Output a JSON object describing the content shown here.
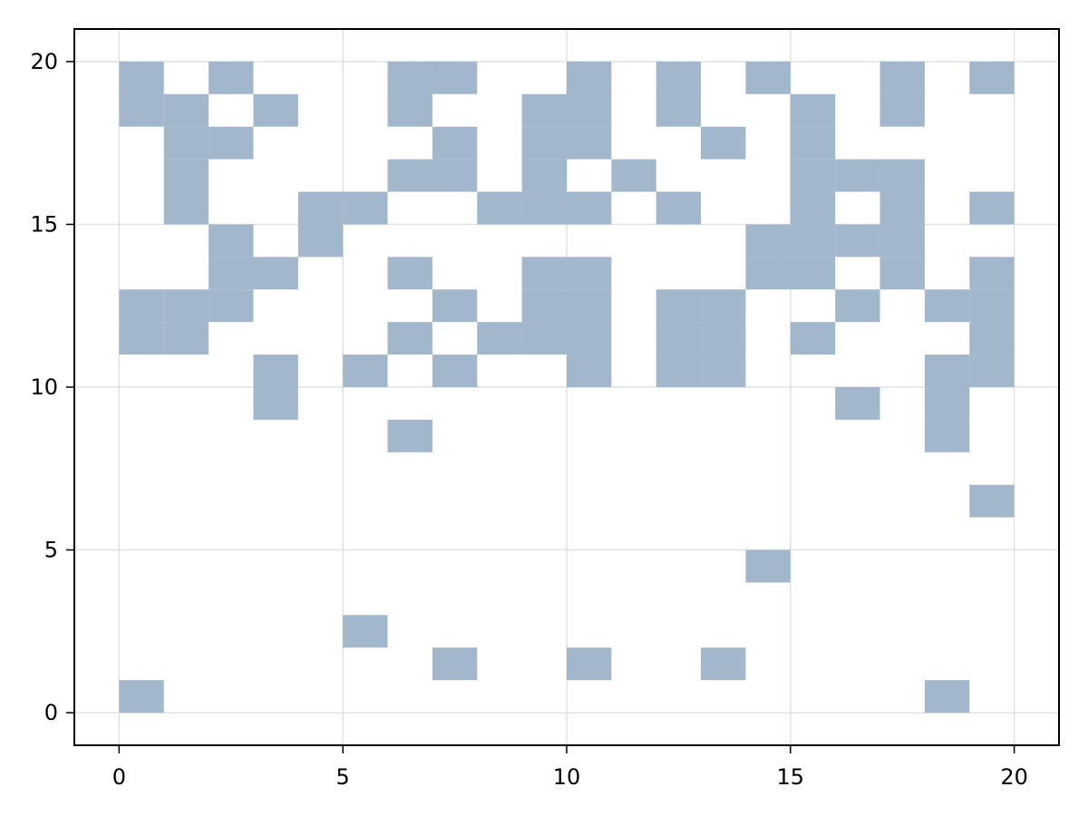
{
  "chart_data": {
    "type": "heatmap",
    "title": "",
    "xlabel": "",
    "ylabel": "",
    "xlim": [
      -1,
      21
    ],
    "ylim": [
      -1,
      21
    ],
    "x_ticks": [
      0,
      5,
      10,
      15,
      20
    ],
    "y_ticks": [
      0,
      5,
      10,
      15,
      20
    ],
    "x_tick_labels": [
      "0",
      "5",
      "10",
      "15",
      "20"
    ],
    "y_tick_labels": [
      "0",
      "5",
      "10",
      "15",
      "20"
    ],
    "grid": true,
    "cell_size": 1,
    "cell_color": "#a2b6cc",
    "cells": [
      [
        0,
        19
      ],
      [
        2,
        19
      ],
      [
        6,
        19
      ],
      [
        7,
        19
      ],
      [
        10,
        19
      ],
      [
        12,
        19
      ],
      [
        14,
        19
      ],
      [
        17,
        19
      ],
      [
        19,
        19
      ],
      [
        0,
        18
      ],
      [
        1,
        18
      ],
      [
        3,
        18
      ],
      [
        6,
        18
      ],
      [
        9,
        18
      ],
      [
        10,
        18
      ],
      [
        12,
        18
      ],
      [
        15,
        18
      ],
      [
        17,
        18
      ],
      [
        1,
        17
      ],
      [
        2,
        17
      ],
      [
        7,
        17
      ],
      [
        9,
        17
      ],
      [
        10,
        17
      ],
      [
        13,
        17
      ],
      [
        15,
        17
      ],
      [
        1,
        16
      ],
      [
        6,
        16
      ],
      [
        7,
        16
      ],
      [
        9,
        16
      ],
      [
        11,
        16
      ],
      [
        15,
        16
      ],
      [
        16,
        16
      ],
      [
        17,
        16
      ],
      [
        1,
        15
      ],
      [
        4,
        15
      ],
      [
        5,
        15
      ],
      [
        8,
        15
      ],
      [
        9,
        15
      ],
      [
        10,
        15
      ],
      [
        12,
        15
      ],
      [
        15,
        15
      ],
      [
        17,
        15
      ],
      [
        19,
        15
      ],
      [
        2,
        14
      ],
      [
        4,
        14
      ],
      [
        14,
        14
      ],
      [
        15,
        14
      ],
      [
        16,
        14
      ],
      [
        17,
        14
      ],
      [
        2,
        13
      ],
      [
        3,
        13
      ],
      [
        6,
        13
      ],
      [
        9,
        13
      ],
      [
        10,
        13
      ],
      [
        14,
        13
      ],
      [
        15,
        13
      ],
      [
        17,
        13
      ],
      [
        19,
        13
      ],
      [
        0,
        12
      ],
      [
        1,
        12
      ],
      [
        2,
        12
      ],
      [
        7,
        12
      ],
      [
        9,
        12
      ],
      [
        10,
        12
      ],
      [
        12,
        12
      ],
      [
        13,
        12
      ],
      [
        16,
        12
      ],
      [
        18,
        12
      ],
      [
        19,
        12
      ],
      [
        0,
        11
      ],
      [
        1,
        11
      ],
      [
        6,
        11
      ],
      [
        8,
        11
      ],
      [
        9,
        11
      ],
      [
        10,
        11
      ],
      [
        12,
        11
      ],
      [
        13,
        11
      ],
      [
        15,
        11
      ],
      [
        19,
        11
      ],
      [
        3,
        10
      ],
      [
        5,
        10
      ],
      [
        7,
        10
      ],
      [
        10,
        10
      ],
      [
        12,
        10
      ],
      [
        13,
        10
      ],
      [
        18,
        10
      ],
      [
        19,
        10
      ],
      [
        3,
        9
      ],
      [
        16,
        9
      ],
      [
        18,
        9
      ],
      [
        6,
        8
      ],
      [
        18,
        8
      ],
      [
        19,
        6
      ],
      [
        14,
        4
      ],
      [
        5,
        2
      ],
      [
        7,
        1
      ],
      [
        10,
        1
      ],
      [
        13,
        1
      ],
      [
        0,
        0
      ],
      [
        18,
        0
      ]
    ]
  }
}
